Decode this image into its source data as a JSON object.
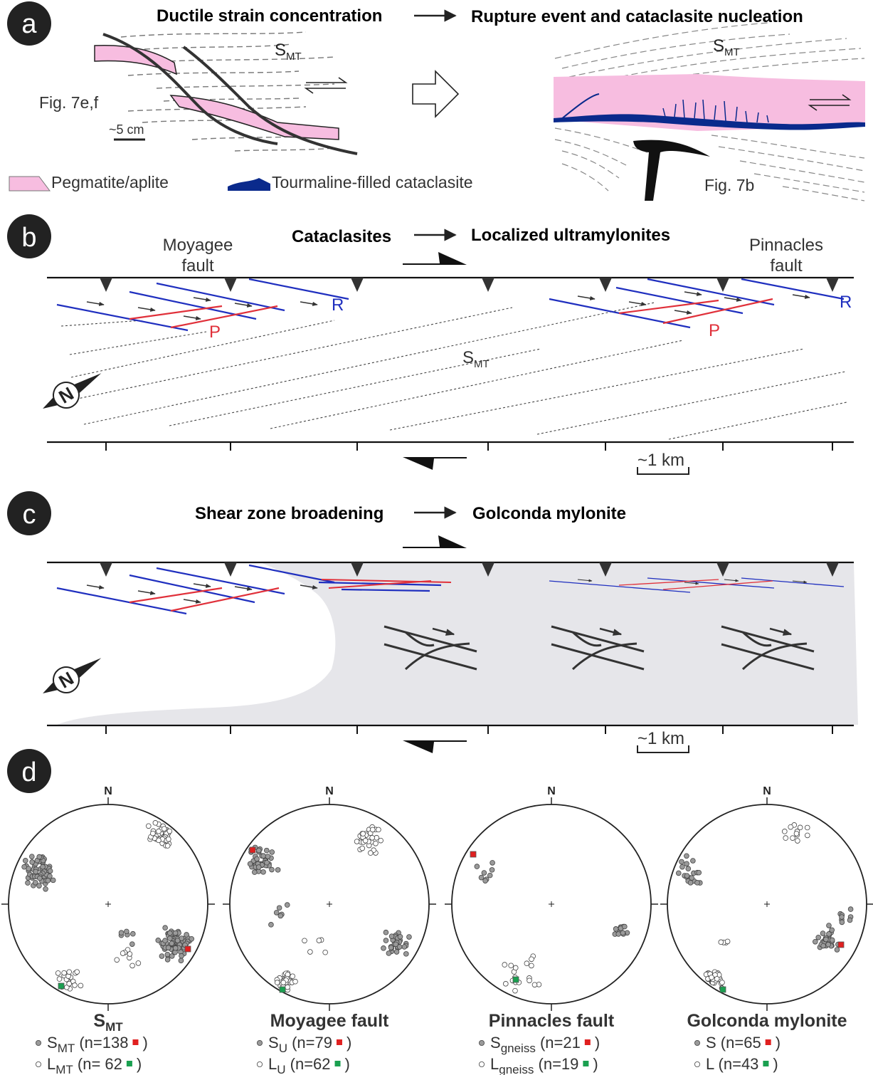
{
  "panel_a": {
    "letter": "a",
    "title_left": "Ductile strain concentration",
    "title_right": "Rupture event and cataclasite nucleation",
    "fig_ref_left": "Fig. 7e,f",
    "scale_label": "~5 cm",
    "s_label_base": "S",
    "s_label_sub": "MT",
    "fig_ref_right": "Fig. 7b",
    "legend_pegmatite": "Pegmatite/aplite",
    "legend_cataclasite": "Tourmaline-filled cataclasite"
  },
  "panel_b": {
    "letter": "b",
    "title_left": "Cataclasites",
    "title_right": "Localized ultramylonites",
    "fault_left_line1": "Moyagee",
    "fault_left_line2": "fault",
    "fault_right_line1": "Pinnacles",
    "fault_right_line2": "fault",
    "r_label": "R",
    "p_label": "P",
    "s_label_base": "S",
    "s_label_sub": "MT",
    "north": "N",
    "scale_label": "~1 km"
  },
  "panel_c": {
    "letter": "c",
    "title_left": "Shear zone broadening",
    "title_right": "Golconda mylonite",
    "north": "N",
    "scale_label": "~1 km"
  },
  "panel_d": {
    "letter": "d",
    "north": "N",
    "stereonets": [
      {
        "title_base": "S",
        "title_sub": "MT",
        "s_base": "S",
        "s_sub": "MT",
        "s_count": "(n=138",
        "l_base": "L",
        "l_sub": "MT",
        "l_count": "(n= 62",
        "close": ")"
      },
      {
        "title_base": "Moyagee fault",
        "title_sub": "",
        "s_base": "S",
        "s_sub": "U",
        "s_count": "(n=79",
        "l_base": "L",
        "l_sub": "U",
        "l_count": "(n=62",
        "close": ")"
      },
      {
        "title_base": "Pinnacles fault",
        "title_sub": "",
        "s_base": "S",
        "s_sub": "gneiss",
        "s_count": "(n=21",
        "l_base": "L",
        "l_sub": "gneiss",
        "l_count": "(n=19",
        "close": ")"
      },
      {
        "title_base": "Golconda mylonite",
        "title_sub": "",
        "s_base": "S",
        "s_sub": "",
        "s_count": "(n=65",
        "l_base": "L",
        "l_sub": "",
        "l_count": "(n=43",
        "close": ")"
      }
    ]
  },
  "colors": {
    "pegmatite": "#f7bde0",
    "cataclasite": "#0a2a8c",
    "r_shear": "#1f2fbf",
    "p_shear": "#e0303a",
    "zone_fill": "#e6e6ea",
    "s_pole": "#9a9a9a",
    "s_mean": "#e02020",
    "l_mean": "#1aa050"
  }
}
